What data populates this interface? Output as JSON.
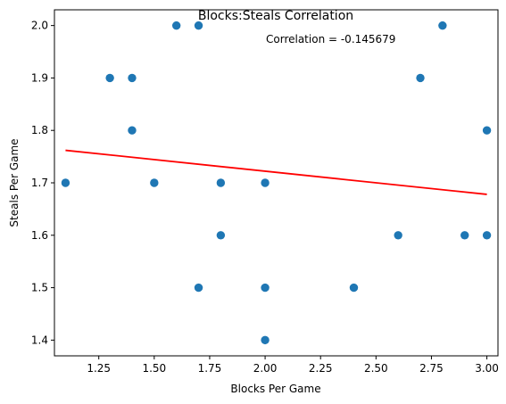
{
  "chart_data": {
    "type": "scatter",
    "title": "Blocks:Steals Correlation",
    "xlabel": "Blocks Per Game",
    "ylabel": "Steals Per Game",
    "xlim": [
      1.05,
      3.05
    ],
    "ylim": [
      1.37,
      2.03
    ],
    "x_ticks": [
      "1.25",
      "1.50",
      "1.75",
      "2.00",
      "2.25",
      "2.50",
      "2.75",
      "3.00"
    ],
    "y_ticks": [
      "1.4",
      "1.5",
      "1.6",
      "1.7",
      "1.8",
      "1.9",
      "2.0"
    ],
    "grid": false,
    "annotation": "Correlation = -0.145679",
    "point_color": "#1f77b4",
    "line_color": "#ff0000",
    "points": [
      {
        "x": 1.1,
        "y": 1.7
      },
      {
        "x": 1.3,
        "y": 1.9
      },
      {
        "x": 1.4,
        "y": 1.9
      },
      {
        "x": 1.4,
        "y": 1.8
      },
      {
        "x": 1.5,
        "y": 1.7
      },
      {
        "x": 1.6,
        "y": 2.0
      },
      {
        "x": 1.7,
        "y": 2.0
      },
      {
        "x": 1.7,
        "y": 1.5
      },
      {
        "x": 1.8,
        "y": 1.7
      },
      {
        "x": 1.8,
        "y": 1.6
      },
      {
        "x": 2.0,
        "y": 1.7
      },
      {
        "x": 2.0,
        "y": 1.5
      },
      {
        "x": 2.0,
        "y": 1.4
      },
      {
        "x": 2.4,
        "y": 1.5
      },
      {
        "x": 2.6,
        "y": 1.6
      },
      {
        "x": 2.7,
        "y": 1.9
      },
      {
        "x": 2.8,
        "y": 2.0
      },
      {
        "x": 2.9,
        "y": 1.6
      },
      {
        "x": 3.0,
        "y": 1.8
      },
      {
        "x": 3.0,
        "y": 1.6
      }
    ],
    "trend_line": {
      "x": [
        1.1,
        3.0
      ],
      "y": [
        1.762,
        1.678
      ]
    }
  }
}
